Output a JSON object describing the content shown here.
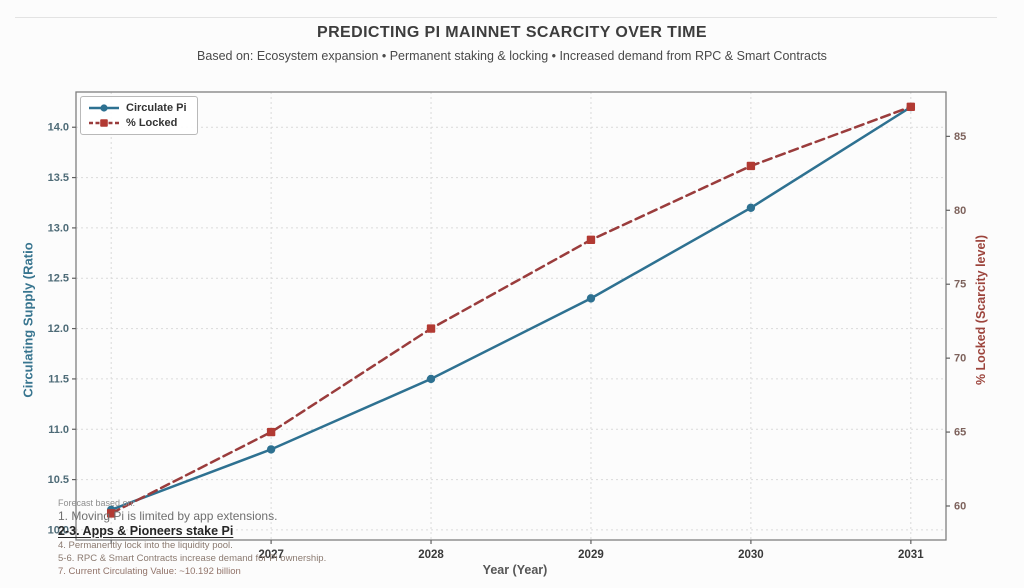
{
  "header": {
    "title": "PREDICTING PI MAINNET SCARCITY OVER TIME",
    "subtitle": "Based on: Ecosystem expansion • Permanent staking & locking • Increased demand from RPC & Smart Contracts"
  },
  "chart_data": {
    "type": "line",
    "title": "PREDICTING PI MAINNET SCARCITY OVER TIME",
    "subtitle": "Based on: Ecosystem expansion • Permanent staking & locking • Increased demand from RPC & Smart Contracts",
    "x": [
      2026,
      2027,
      2028,
      2029,
      2030,
      2031
    ],
    "x_tick_labels": [
      "",
      "2027",
      "2028",
      "2029",
      "2030",
      "2031"
    ],
    "xlabel": "Year (Year)",
    "x_range": [
      2025.78,
      2031.22
    ],
    "grid": true,
    "legend_position": "upper left",
    "y_left": {
      "label": "Circulating Supply (Ratio",
      "ticks": [
        "10.0",
        "10.5",
        "11.0",
        "11.5",
        "12.0",
        "12.5",
        "13.0",
        "13.5",
        "14.0"
      ],
      "range": [
        9.9,
        14.35
      ]
    },
    "y_right": {
      "label": "% Locked (Scarcity level)",
      "ticks": [
        "60",
        "65",
        "70",
        "75",
        "80",
        "85"
      ],
      "range": [
        57.7,
        88.0
      ]
    },
    "series": [
      {
        "name": "Circulate Pi",
        "axis": "left",
        "style": "solid",
        "marker": "circle",
        "color": "#2e7191",
        "values": [
          10.2,
          10.8,
          11.5,
          12.3,
          13.2,
          14.2
        ]
      },
      {
        "name": "% Locked",
        "axis": "right",
        "style": "dashed",
        "marker": "square",
        "color": "#9a3c3c",
        "marker_color": "#b23a33",
        "values": [
          59.5,
          65,
          72,
          78,
          83,
          87
        ]
      }
    ]
  },
  "annotations": [
    {
      "text": "Forecast based on:"
    },
    {
      "text": "1. Moving Pi is limited by app extensions."
    },
    {
      "text": "2-3. Apps & Pioneers stake Pi"
    },
    {
      "text": "4. Permanently lock into the liquidity pool."
    },
    {
      "text": "5-6. RPC & Smart Contracts increase demand for Pi ownership."
    },
    {
      "text": "7. Current Circulating Value: ~10.192 billion"
    }
  ]
}
